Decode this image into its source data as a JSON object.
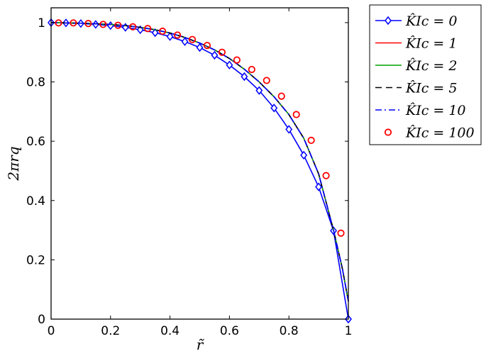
{
  "chart_data": {
    "type": "line",
    "title": "",
    "xlabel": "r̃",
    "ylabel": "2πrq",
    "xlim": [
      0,
      1
    ],
    "ylim": [
      0,
      1.05
    ],
    "grid": false,
    "legend_position": "outside-top-right",
    "x_ticks": [
      "0",
      "0.2",
      "0.4",
      "0.6",
      "0.8",
      "1"
    ],
    "y_ticks": [
      "0",
      "0.2",
      "0.4",
      "0.6",
      "0.8",
      "1"
    ],
    "x_tick_values": [
      0,
      0.2,
      0.4,
      0.6,
      0.8,
      1.0
    ],
    "y_tick_values": [
      0,
      0.2,
      0.4,
      0.6,
      0.8,
      1.0
    ],
    "series": [
      {
        "name": "K̂Ic = 0",
        "color": "#0000ff",
        "style": "solid",
        "marker": "diamond",
        "x": [
          0.0,
          0.05,
          0.1,
          0.15,
          0.2,
          0.25,
          0.3,
          0.35,
          0.4,
          0.45,
          0.5,
          0.55,
          0.6,
          0.65,
          0.7,
          0.75,
          0.8,
          0.85,
          0.9,
          0.95,
          1.0
        ],
        "y": [
          1.0,
          0.999,
          0.997,
          0.994,
          0.99,
          0.984,
          0.976,
          0.966,
          0.953,
          0.936,
          0.916,
          0.89,
          0.857,
          0.818,
          0.771,
          0.712,
          0.64,
          0.553,
          0.446,
          0.298,
          0.0
        ]
      },
      {
        "name": "K̂Ic = 1",
        "color": "#ff0000",
        "style": "solid",
        "marker": "none",
        "x": [
          0.0,
          0.05,
          0.1,
          0.15,
          0.2,
          0.25,
          0.3,
          0.35,
          0.4,
          0.45,
          0.5,
          0.55,
          0.6,
          0.65,
          0.7,
          0.75,
          0.8,
          0.85,
          0.9,
          0.95,
          0.98,
          1.0
        ],
        "y": [
          1.0,
          0.999,
          0.998,
          0.996,
          0.994,
          0.99,
          0.984,
          0.976,
          0.965,
          0.95,
          0.931,
          0.908,
          0.879,
          0.843,
          0.8,
          0.75,
          0.69,
          0.61,
          0.49,
          0.3,
          0.17,
          0.06
        ]
      },
      {
        "name": "K̂Ic = 2",
        "color": "#00a000",
        "style": "solid",
        "marker": "none",
        "x": [
          0.0,
          0.05,
          0.1,
          0.15,
          0.2,
          0.25,
          0.3,
          0.35,
          0.4,
          0.45,
          0.5,
          0.55,
          0.6,
          0.65,
          0.7,
          0.75,
          0.8,
          0.85,
          0.9,
          0.95,
          0.98,
          1.0
        ],
        "y": [
          1.0,
          0.999,
          0.998,
          0.996,
          0.994,
          0.99,
          0.984,
          0.976,
          0.965,
          0.95,
          0.931,
          0.908,
          0.879,
          0.843,
          0.8,
          0.75,
          0.69,
          0.61,
          0.49,
          0.3,
          0.17,
          0.06
        ]
      },
      {
        "name": "K̂Ic = 5",
        "color": "#000000",
        "style": "dashed",
        "marker": "none",
        "x": [
          0.0,
          0.05,
          0.1,
          0.15,
          0.2,
          0.25,
          0.3,
          0.35,
          0.4,
          0.45,
          0.5,
          0.55,
          0.6,
          0.65,
          0.7,
          0.75,
          0.8,
          0.85,
          0.9,
          0.95,
          0.98,
          1.0
        ],
        "y": [
          1.0,
          0.999,
          0.998,
          0.996,
          0.994,
          0.99,
          0.984,
          0.976,
          0.965,
          0.95,
          0.931,
          0.908,
          0.879,
          0.843,
          0.8,
          0.75,
          0.69,
          0.61,
          0.49,
          0.3,
          0.17,
          0.06
        ]
      },
      {
        "name": "K̂Ic = 10",
        "color": "#0000ff",
        "style": "dashdot",
        "marker": "none",
        "x": [
          0.0,
          0.05,
          0.1,
          0.15,
          0.2,
          0.25,
          0.3,
          0.35,
          0.4,
          0.45,
          0.5,
          0.55,
          0.6,
          0.65,
          0.7,
          0.75,
          0.8,
          0.85,
          0.9,
          0.95,
          0.98,
          1.0
        ],
        "y": [
          1.0,
          0.999,
          0.998,
          0.996,
          0.994,
          0.99,
          0.984,
          0.976,
          0.965,
          0.95,
          0.931,
          0.908,
          0.879,
          0.843,
          0.8,
          0.75,
          0.69,
          0.61,
          0.49,
          0.3,
          0.17,
          0.06
        ]
      },
      {
        "name": "K̂Ic = 100",
        "color": "#ff0000",
        "style": "none",
        "marker": "circle",
        "x": [
          0.025,
          0.075,
          0.125,
          0.175,
          0.225,
          0.275,
          0.325,
          0.375,
          0.425,
          0.475,
          0.525,
          0.575,
          0.625,
          0.675,
          0.725,
          0.775,
          0.825,
          0.875,
          0.925,
          0.975
        ],
        "y": [
          0.999,
          0.999,
          0.997,
          0.994,
          0.991,
          0.986,
          0.98,
          0.971,
          0.958,
          0.943,
          0.923,
          0.9,
          0.874,
          0.842,
          0.805,
          0.752,
          0.69,
          0.603,
          0.484,
          0.29
        ]
      }
    ]
  }
}
